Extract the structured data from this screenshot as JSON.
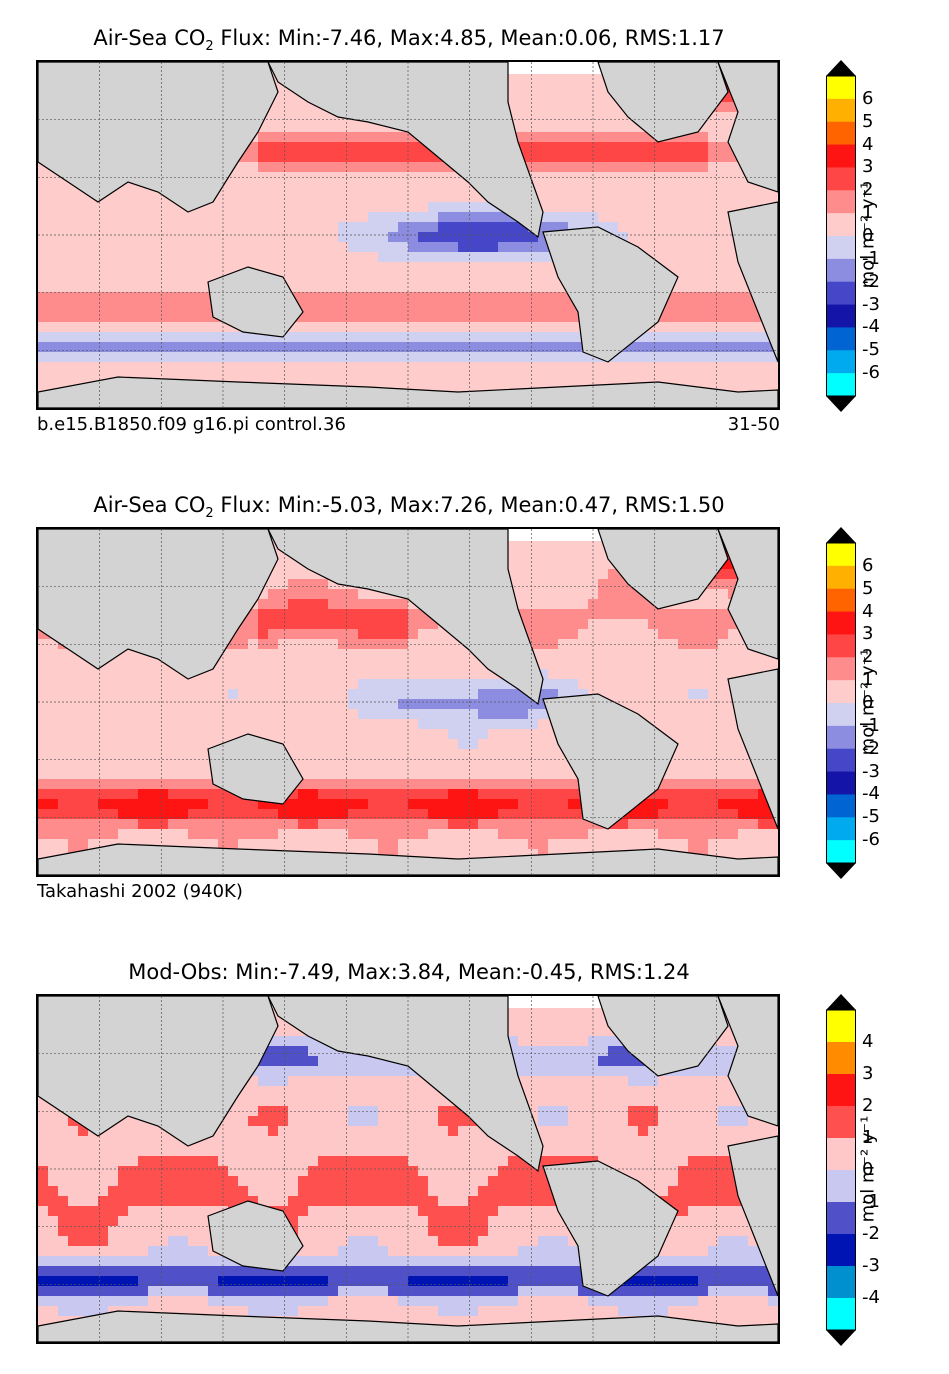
{
  "panels": [
    {
      "title_pre": "Air-Sea CO",
      "title_sub": "2",
      "title_post": " Flux: Min:-7.46, Max:4.85, Mean:0.06, RMS:1.17",
      "foot_left": "b.e15.B1850.f09 g16.pi control.36",
      "foot_right": "31-50",
      "units": "mol m⁻² y⁻¹",
      "levels": [
        "6",
        "5",
        "4",
        "3",
        "2",
        "1",
        "0",
        "-1",
        "-2",
        "-3",
        "-4",
        "-5",
        "-6"
      ],
      "colors": [
        "#ffff00",
        "#ffb000",
        "#ff6400",
        "#ff1414",
        "#ff4646",
        "#ff8c8c",
        "#ffcccc",
        "#d0d0f0",
        "#8c8ce0",
        "#4646c8",
        "#1414a8",
        "#0064d2",
        "#00aaee",
        "#00ffff"
      ],
      "arrow_colors": {
        "top": "#000000",
        "bottom": "#000000"
      }
    },
    {
      "title_pre": "Air-Sea CO",
      "title_sub": "2",
      "title_post": " Flux: Min:-5.03, Max:7.26, Mean:0.47, RMS:1.50",
      "foot_left": "Takahashi 2002 (940K)",
      "foot_right": "",
      "units": "mol m⁻² y⁻¹",
      "levels": [
        "6",
        "5",
        "4",
        "3",
        "2",
        "1",
        "0",
        "-1",
        "-2",
        "-3",
        "-4",
        "-5",
        "-6"
      ],
      "colors": [
        "#ffff00",
        "#ffb000",
        "#ff6400",
        "#ff1414",
        "#ff4646",
        "#ff8c8c",
        "#ffcccc",
        "#d0d0f0",
        "#8c8ce0",
        "#4646c8",
        "#1414a8",
        "#0064d2",
        "#00aaee",
        "#00ffff"
      ],
      "arrow_colors": {
        "top": "#000000",
        "bottom": "#000000"
      }
    },
    {
      "title_pre": "Mod-Obs: Min:-7.49, Max:3.84, Mean:-0.45, RMS:1.24",
      "title_sub": "",
      "title_post": "",
      "foot_left": "",
      "foot_right": "",
      "units": "mol m⁻² y⁻¹",
      "levels": [
        "4",
        "3",
        "2",
        "1",
        "0",
        "-1",
        "-2",
        "-3",
        "-4"
      ],
      "colors": [
        "#ffff00",
        "#ff8c00",
        "#ff1414",
        "#ff5050",
        "#ffc8c8",
        "#c8c8f0",
        "#5050c8",
        "#0014b4",
        "#0090d0",
        "#00ffff"
      ],
      "arrow_colors": {
        "top": "#000000",
        "bottom": "#000000"
      }
    }
  ],
  "map_colors": {
    "land": "#d3d3d3",
    "ocean_missing": "#ffffff",
    "coast": "#000000",
    "grid": "#555555"
  }
}
